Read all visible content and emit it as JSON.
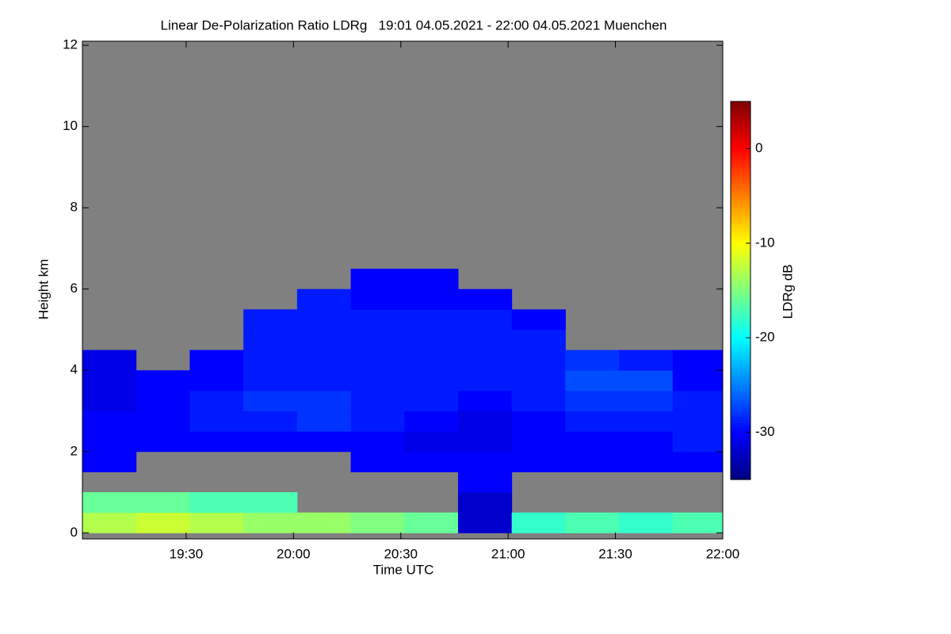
{
  "chart_data": {
    "type": "heatmap",
    "title": "Linear De-Polarization Ratio LDRg   19:01 04.05.2021 - 22:00 04.05.2021 Muenchen",
    "xlabel": "Time UTC",
    "ylabel": "Height km",
    "colorbar_label": "LDRg dB",
    "xlim": [
      1141,
      1320
    ],
    "xticks": [
      {
        "value": 1170,
        "label": "19:30"
      },
      {
        "value": 1200,
        "label": "20:00"
      },
      {
        "value": 1230,
        "label": "20:30"
      },
      {
        "value": 1260,
        "label": "21:00"
      },
      {
        "value": 1290,
        "label": "21:30"
      },
      {
        "value": 1320,
        "label": "22:00"
      }
    ],
    "ylim": [
      -0.15,
      12.1
    ],
    "yticks": [
      0,
      2,
      4,
      6,
      8,
      10,
      12
    ],
    "clim": [
      -35,
      5
    ],
    "cticks": [
      0,
      -10,
      -20,
      -30
    ],
    "colormap": "jet",
    "background": "#808080",
    "x_bins": [
      1141,
      1156,
      1171,
      1186,
      1201,
      1216,
      1231,
      1246,
      1261,
      1276,
      1291,
      1306,
      1320
    ],
    "y_bins": [
      0,
      0.5,
      1,
      1.5,
      2,
      2.5,
      3,
      3.5,
      4,
      4.5,
      5,
      5.5,
      6,
      6.5
    ],
    "z": [
      [
        -13,
        -12,
        -13,
        -14,
        -14,
        -15,
        -16,
        -32,
        -18,
        -17,
        -18,
        -17
      ],
      [
        -16,
        -16,
        -17,
        -17,
        null,
        null,
        null,
        -32,
        null,
        null,
        null,
        null
      ],
      [
        null,
        null,
        null,
        null,
        null,
        null,
        null,
        -30,
        null,
        null,
        null,
        null
      ],
      [
        -30,
        null,
        null,
        null,
        null,
        -30,
        -30,
        -30,
        -30,
        -30,
        -30,
        -30
      ],
      [
        -30,
        -30,
        -30,
        -30,
        -30,
        -30,
        -31,
        -31,
        -30,
        -30,
        -30,
        -29
      ],
      [
        -30,
        -30,
        -29,
        -29,
        -28,
        -29,
        -30,
        -31,
        -30,
        -29,
        -29,
        -29
      ],
      [
        -31,
        -30,
        -29,
        -28,
        -28,
        -29,
        -29,
        -30,
        -29,
        -28,
        -28,
        -29
      ],
      [
        -31,
        -30,
        -30,
        -29,
        -29,
        -29,
        -29,
        -29,
        -29,
        -27,
        -27,
        -30
      ],
      [
        -31,
        null,
        -30,
        -29,
        -29,
        -29,
        -29,
        -29,
        -29,
        -28,
        -29,
        -30
      ],
      [
        null,
        null,
        null,
        -29,
        -29,
        -29,
        -29,
        -29,
        -29,
        null,
        null,
        null
      ],
      [
        null,
        null,
        null,
        -29,
        -29,
        -29,
        -29,
        -29,
        -30,
        null,
        null,
        null
      ],
      [
        null,
        null,
        null,
        null,
        -29,
        -30,
        -30,
        -30,
        null,
        null,
        null,
        null
      ],
      [
        null,
        null,
        null,
        null,
        null,
        -30,
        -30,
        null,
        null,
        null,
        null,
        null
      ]
    ]
  }
}
